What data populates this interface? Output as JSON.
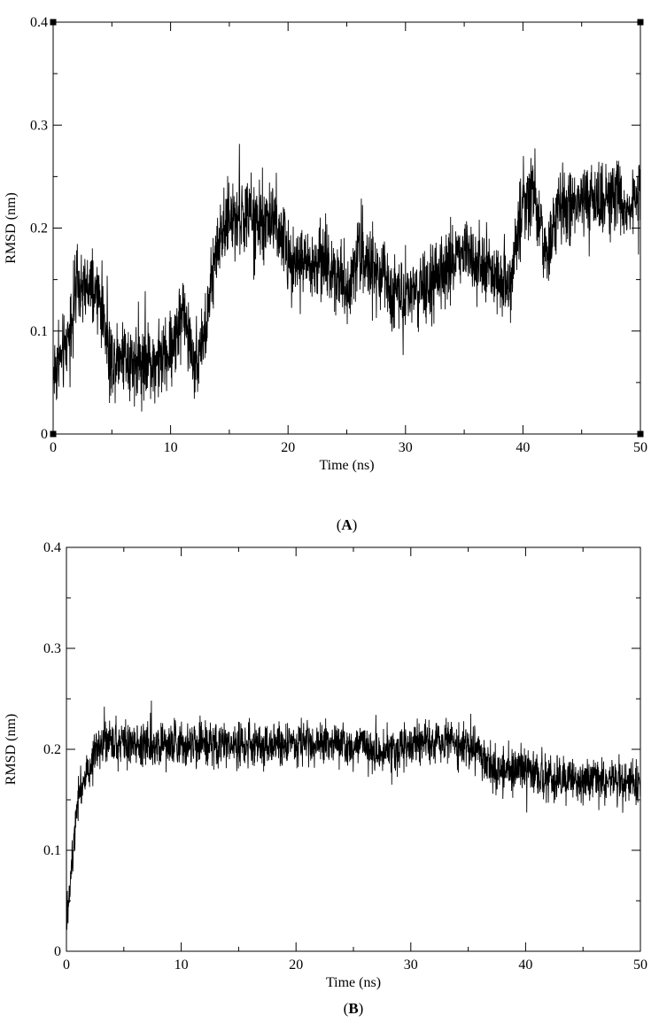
{
  "chart_data": [
    {
      "type": "line",
      "panel_label": "A",
      "xlabel": "Time (ns)",
      "ylabel": "RMSD (nm)",
      "xlim": [
        0,
        50
      ],
      "ylim": [
        0,
        0.4
      ],
      "x_ticks": [
        "0",
        "10",
        "20",
        "30",
        "40",
        "50"
      ],
      "y_ticks": [
        "0",
        "0.1",
        "0.2",
        "0.3",
        "0.4"
      ],
      "grid": false,
      "series": [
        {
          "color": "#000000",
          "x": [
            0,
            1,
            2,
            3,
            4,
            5,
            6,
            7,
            8,
            9,
            10,
            11,
            12,
            13,
            14,
            15,
            16,
            17,
            18,
            19,
            20,
            21,
            22,
            23,
            24,
            25,
            26,
            27,
            28,
            29,
            30,
            31,
            32,
            33,
            34,
            35,
            36,
            37,
            38,
            39,
            40,
            41,
            42,
            43,
            44,
            45,
            46,
            47,
            48,
            49,
            50
          ],
          "y": [
            0.06,
            0.08,
            0.14,
            0.14,
            0.13,
            0.07,
            0.08,
            0.07,
            0.07,
            0.07,
            0.08,
            0.12,
            0.07,
            0.1,
            0.19,
            0.21,
            0.21,
            0.21,
            0.2,
            0.21,
            0.17,
            0.17,
            0.16,
            0.17,
            0.16,
            0.14,
            0.18,
            0.16,
            0.15,
            0.14,
            0.14,
            0.14,
            0.14,
            0.15,
            0.17,
            0.18,
            0.17,
            0.16,
            0.15,
            0.15,
            0.23,
            0.23,
            0.17,
            0.22,
            0.22,
            0.22,
            0.23,
            0.23,
            0.23,
            0.22,
            0.23
          ]
        }
      ]
    },
    {
      "type": "line",
      "panel_label": "B",
      "xlabel": "Time (ns)",
      "ylabel": "RMSD (nm)",
      "xlim": [
        0,
        50
      ],
      "ylim": [
        0,
        0.4
      ],
      "x_ticks": [
        "0",
        "10",
        "20",
        "30",
        "40",
        "50"
      ],
      "y_ticks": [
        "0",
        "0.1",
        "0.2",
        "0.3",
        "0.4"
      ],
      "grid": false,
      "series": [
        {
          "color": "#000000",
          "x": [
            0,
            0.5,
            1,
            1.5,
            2,
            2.5,
            5,
            10,
            15,
            20,
            25,
            28,
            30,
            33,
            36,
            37,
            38,
            40,
            41,
            42,
            45,
            48,
            50
          ],
          "y": [
            0.03,
            0.09,
            0.16,
            0.17,
            0.18,
            0.205,
            0.205,
            0.205,
            0.205,
            0.205,
            0.205,
            0.195,
            0.205,
            0.21,
            0.2,
            0.18,
            0.18,
            0.18,
            0.175,
            0.17,
            0.17,
            0.17,
            0.17
          ]
        }
      ]
    }
  ]
}
